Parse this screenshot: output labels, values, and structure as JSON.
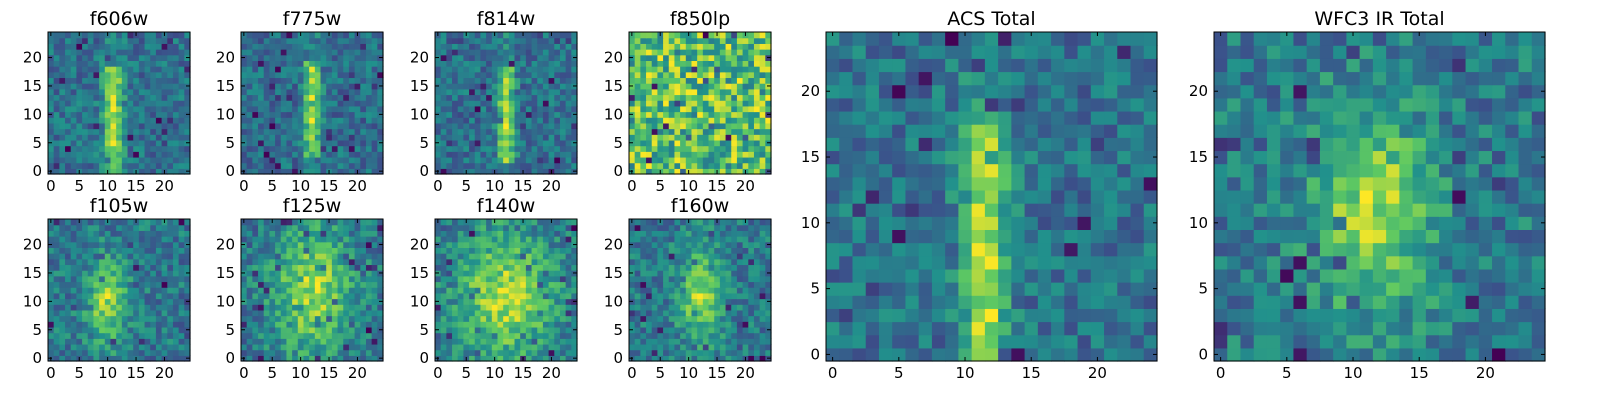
{
  "figure": {
    "colormap": "viridis",
    "colors": [
      "#440154",
      "#3b528b",
      "#21918c",
      "#5ec962",
      "#fde725"
    ]
  },
  "chart_data": [
    {
      "id": "p-f606w",
      "type": "heatmap",
      "title": "f606w",
      "grid": [
        25,
        25
      ],
      "xticks": [
        0,
        5,
        10,
        15,
        20
      ],
      "yticks": [
        0,
        5,
        10,
        15,
        20
      ],
      "xlim": [
        -0.5,
        24.5
      ],
      "ylim": [
        -0.5,
        24.5
      ],
      "source": {
        "kind": "vertical_streak",
        "x": 11,
        "y0": 0,
        "y1": 18,
        "width": 1.2,
        "seed": 11
      }
    },
    {
      "id": "p-f775w",
      "type": "heatmap",
      "title": "f775w",
      "grid": [
        25,
        25
      ],
      "xticks": [
        0,
        5,
        10,
        15,
        20
      ],
      "yticks": [
        0,
        5,
        10,
        15,
        20
      ],
      "xlim": [
        -0.5,
        24.5
      ],
      "ylim": [
        -0.5,
        24.5
      ],
      "source": {
        "kind": "vertical_streak",
        "x": 12,
        "y0": 3,
        "y1": 19,
        "width": 1.0,
        "seed": 23
      }
    },
    {
      "id": "p-f814w",
      "type": "heatmap",
      "title": "f814w",
      "grid": [
        25,
        25
      ],
      "xticks": [
        0,
        5,
        10,
        15,
        20
      ],
      "yticks": [
        0,
        5,
        10,
        15,
        20
      ],
      "xlim": [
        -0.5,
        24.5
      ],
      "ylim": [
        -0.5,
        24.5
      ],
      "source": {
        "kind": "vertical_streak",
        "x": 12,
        "y0": 2,
        "y1": 18,
        "width": 1.0,
        "seed": 37
      }
    },
    {
      "id": "p-f850lp",
      "type": "heatmap",
      "title": "f850lp",
      "grid": [
        25,
        25
      ],
      "xticks": [
        0,
        5,
        10,
        15,
        20
      ],
      "yticks": [
        0,
        5,
        10,
        15,
        20
      ],
      "xlim": [
        -0.5,
        24.5
      ],
      "ylim": [
        -0.5,
        24.5
      ],
      "source": {
        "kind": "noise",
        "seed": 41
      }
    },
    {
      "id": "p-f105w",
      "type": "heatmap",
      "title": "f105w",
      "grid": [
        25,
        25
      ],
      "xticks": [
        0,
        5,
        10,
        15,
        20
      ],
      "yticks": [
        0,
        5,
        10,
        15,
        20
      ],
      "xlim": [
        -0.5,
        24.5
      ],
      "ylim": [
        -0.5,
        24.5
      ],
      "source": {
        "kind": "blob",
        "x": 10,
        "y": 10,
        "sx": 2.5,
        "sy": 5,
        "seed": 53
      }
    },
    {
      "id": "p-f125w",
      "type": "heatmap",
      "title": "f125w",
      "grid": [
        25,
        25
      ],
      "xticks": [
        0,
        5,
        10,
        15,
        20
      ],
      "yticks": [
        0,
        5,
        10,
        15,
        20
      ],
      "xlim": [
        -0.5,
        24.5
      ],
      "ylim": [
        -0.5,
        24.5
      ],
      "source": {
        "kind": "blob",
        "x": 12,
        "y": 12,
        "sx": 5,
        "sy": 8,
        "seed": 67
      }
    },
    {
      "id": "p-f140w",
      "type": "heatmap",
      "title": "f140w",
      "grid": [
        25,
        25
      ],
      "xticks": [
        0,
        5,
        10,
        15,
        20
      ],
      "yticks": [
        0,
        5,
        10,
        15,
        20
      ],
      "xlim": [
        -0.5,
        24.5
      ],
      "ylim": [
        -0.5,
        24.5
      ],
      "source": {
        "kind": "blob",
        "x": 12,
        "y": 11,
        "sx": 6,
        "sy": 8,
        "seed": 71
      }
    },
    {
      "id": "p-f160w",
      "type": "heatmap",
      "title": "f160w",
      "grid": [
        25,
        25
      ],
      "xticks": [
        0,
        5,
        10,
        15,
        20
      ],
      "yticks": [
        0,
        5,
        10,
        15,
        20
      ],
      "xlim": [
        -0.5,
        24.5
      ],
      "ylim": [
        -0.5,
        24.5
      ],
      "source": {
        "kind": "blob",
        "x": 12,
        "y": 11,
        "sx": 2.5,
        "sy": 6,
        "seed": 83
      }
    },
    {
      "id": "p-acs-total",
      "type": "heatmap",
      "title": "ACS Total",
      "grid": [
        25,
        25
      ],
      "xticks": [
        0,
        5,
        10,
        15,
        20
      ],
      "yticks": [
        0,
        5,
        10,
        15,
        20
      ],
      "xlim": [
        -0.5,
        24.5
      ],
      "ylim": [
        -0.5,
        24.5
      ],
      "source": {
        "kind": "vertical_streak",
        "x": 11.5,
        "y0": 0,
        "y1": 17,
        "width": 1.2,
        "seed": 97
      }
    },
    {
      "id": "p-wfc3-total",
      "type": "heatmap",
      "title": "WFC3 IR Total",
      "grid": [
        25,
        25
      ],
      "xticks": [
        0,
        5,
        10,
        15,
        20
      ],
      "yticks": [
        0,
        5,
        10,
        15,
        20
      ],
      "xlim": [
        -0.5,
        24.5
      ],
      "ylim": [
        -0.5,
        24.5
      ],
      "source": {
        "kind": "blob",
        "x": 11.5,
        "y": 11,
        "sx": 3,
        "sy": 5.5,
        "seed": 101
      }
    }
  ]
}
